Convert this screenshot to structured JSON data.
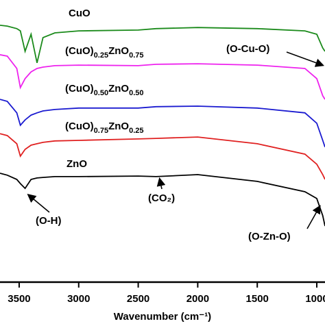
{
  "chart_data": {
    "type": "line",
    "xlabel": "Wavenumber (cm⁻¹)",
    "x": [
      3661,
      3600,
      3520,
      3490,
      3450,
      3400,
      3350,
      3300,
      3200,
      3000,
      2500,
      2350,
      2000,
      1500,
      1100,
      1000,
      950,
      931
    ],
    "xlim": [
      3661,
      931
    ],
    "xticks": [
      3500,
      3000,
      2500,
      2000,
      1500,
      1000
    ],
    "ylim": [
      0,
      100
    ],
    "series": [
      {
        "name": "CuO",
        "color": "#1a8a1a",
        "values": [
          91,
          90.7,
          89.8,
          89,
          81.7,
          87.8,
          77.6,
          86.6,
          88.3,
          89,
          89.3,
          89.8,
          90.2,
          89.8,
          89,
          87.8,
          82.9,
          81.7
        ]
      },
      {
        "name": "(CuO)0.25ZnO0.75",
        "color": "#ee22ee",
        "values": [
          80.5,
          80,
          75.6,
          68.8,
          72,
          74.4,
          75.6,
          76.1,
          76.6,
          76.8,
          76.6,
          77.1,
          77.3,
          76.8,
          75.6,
          72,
          65.9,
          64.6
        ]
      },
      {
        "name": "(CuO)0.50ZnO0.50",
        "color": "#1a1ad0",
        "values": [
          64.6,
          63.9,
          59.8,
          55.4,
          57.3,
          59,
          59.8,
          60.5,
          61,
          61.5,
          61.5,
          62,
          62.2,
          61.5,
          59.8,
          56.1,
          50,
          47.6
        ]
      },
      {
        "name": "(CuO)0.75ZnO0.25",
        "color": "#e02020",
        "values": [
          52.4,
          51.7,
          48.8,
          44.4,
          46.8,
          48.3,
          48.8,
          49.3,
          49.8,
          50,
          50.5,
          50.7,
          51.2,
          48.8,
          45.1,
          41.5,
          37.8,
          36.1
        ]
      },
      {
        "name": "ZnO",
        "color": "#000000",
        "values": [
          38.3,
          37.6,
          36.1,
          34.6,
          32.9,
          36.1,
          36.6,
          36.8,
          37.1,
          37.1,
          37.3,
          37.1,
          37.8,
          35.4,
          31.7,
          29.3,
          23.2,
          19.5
        ]
      }
    ],
    "annotations": [
      "(O-Cu-O)",
      "(O-H)",
      "(CO₂)",
      "(O-Zn-O)"
    ]
  }
}
